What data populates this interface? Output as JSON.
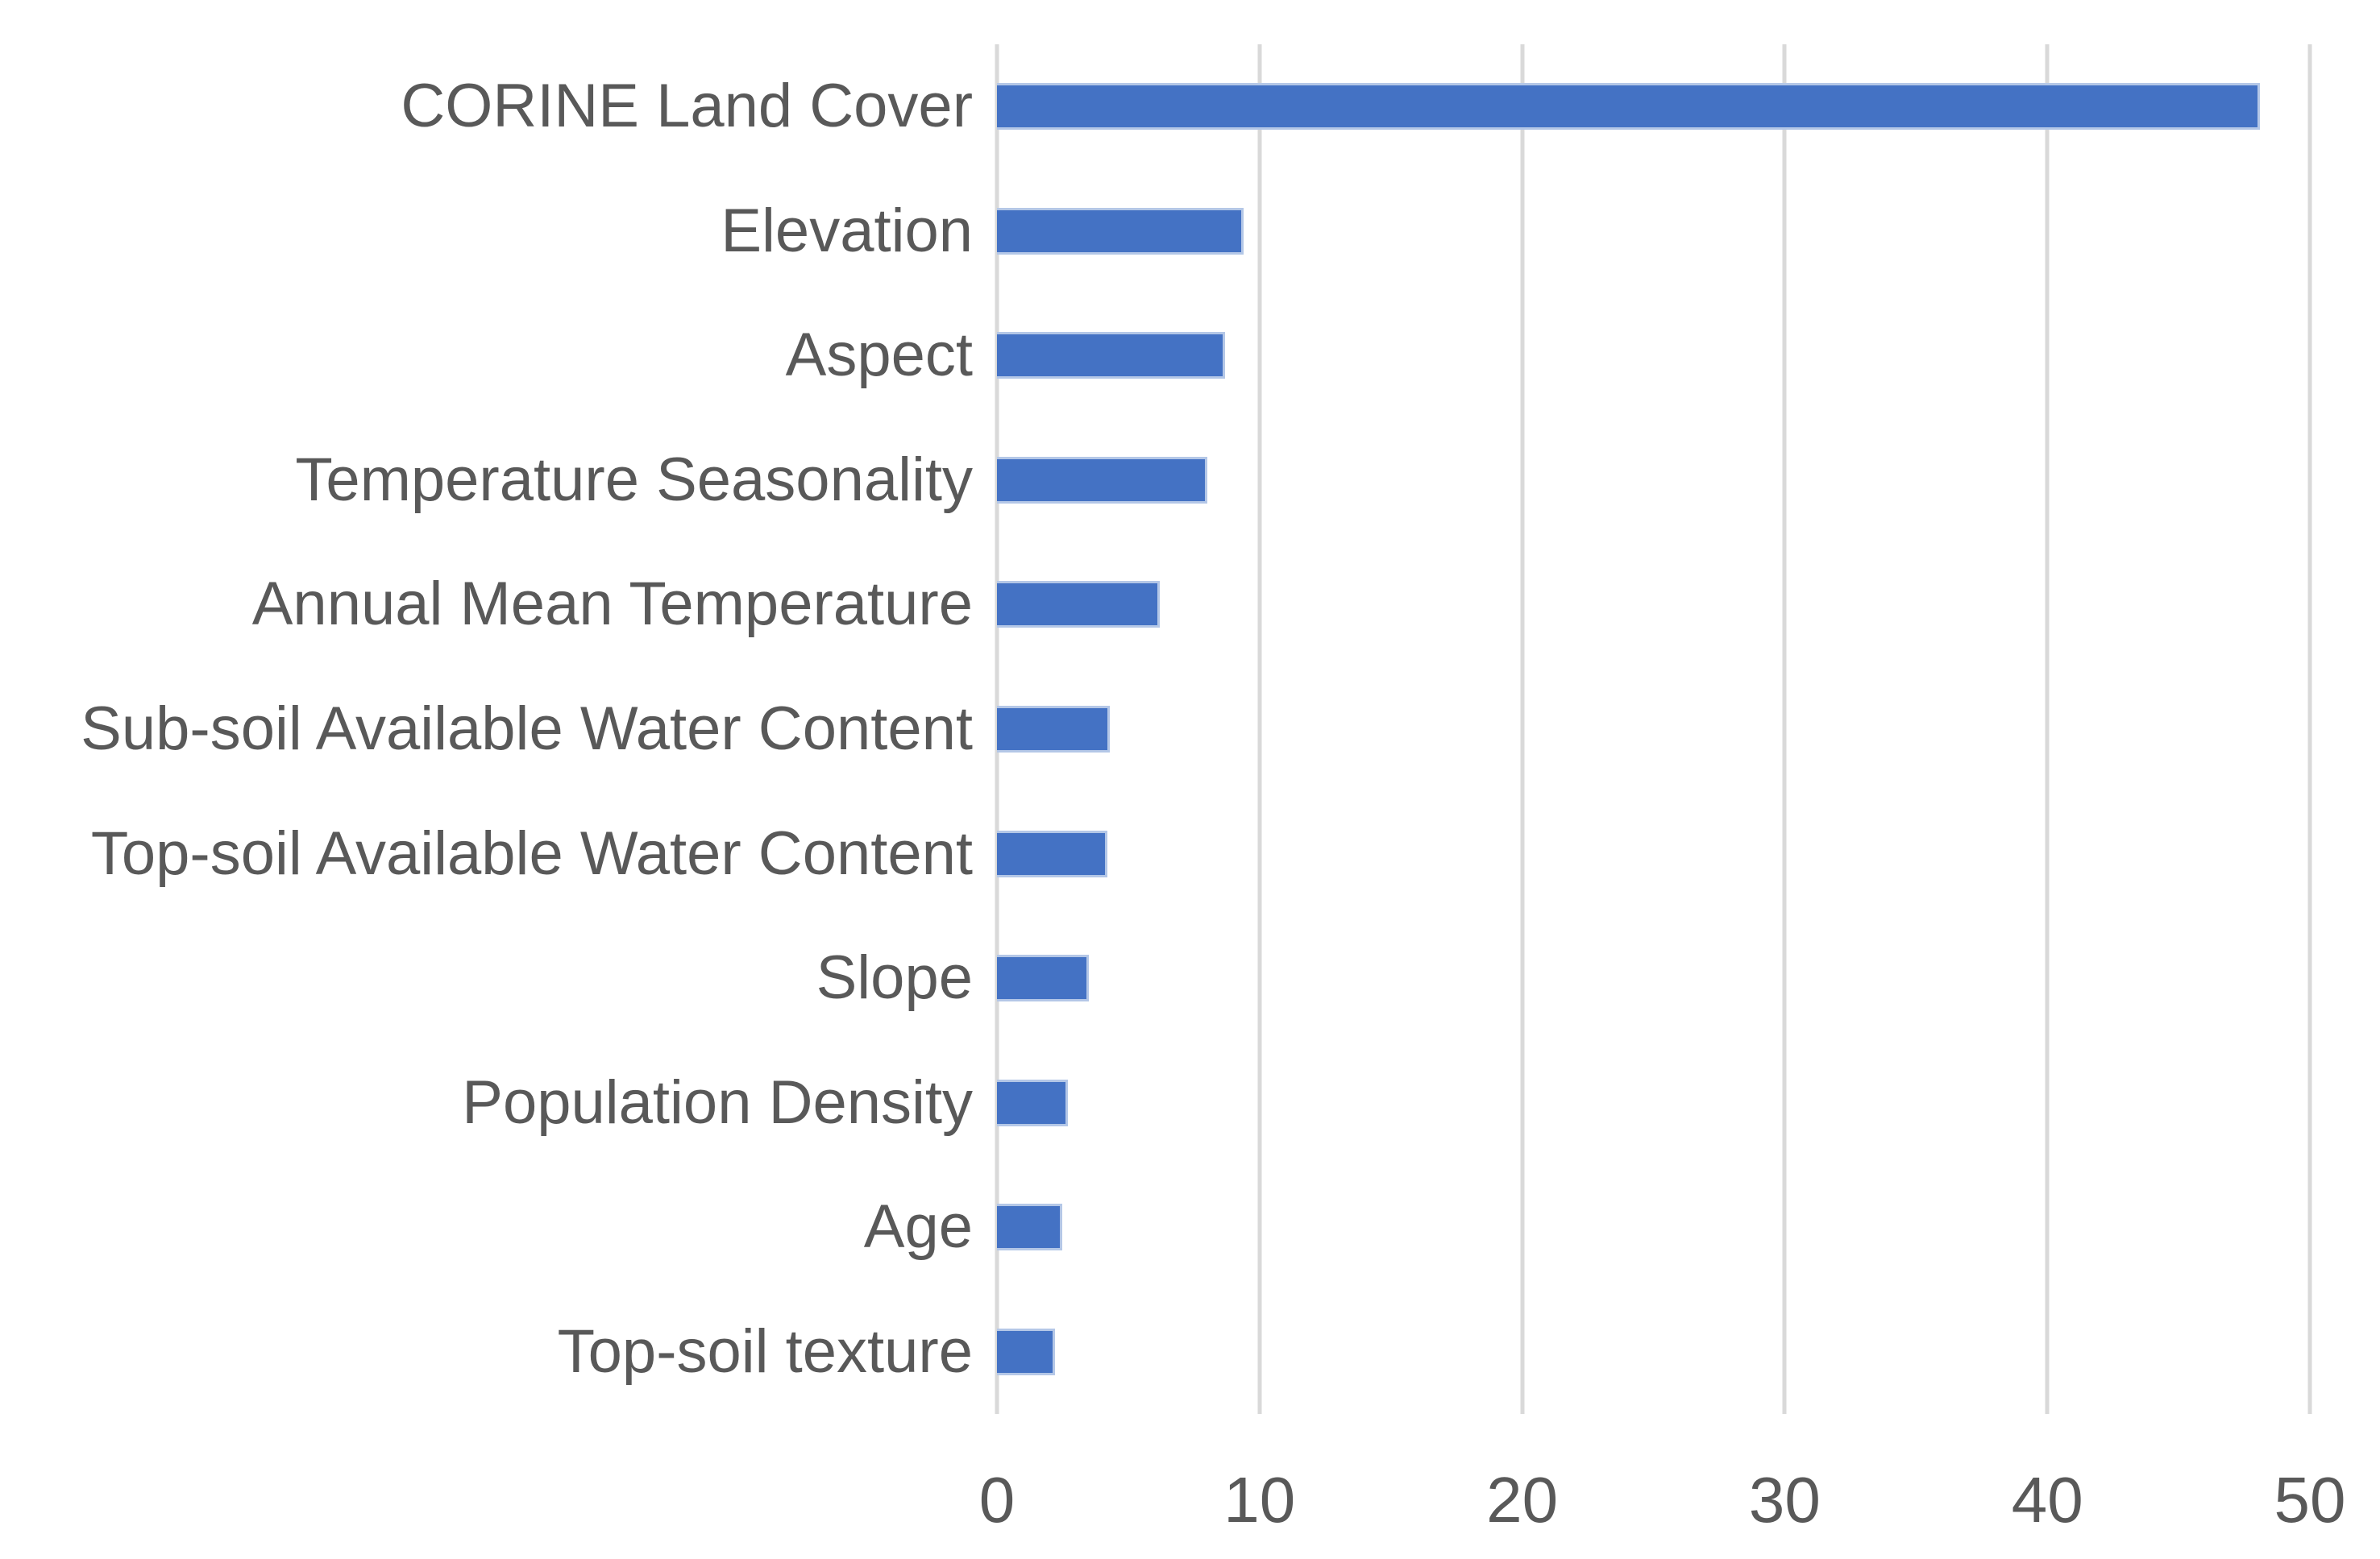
{
  "chart_data": {
    "type": "bar",
    "orientation": "horizontal",
    "title": "",
    "xlabel": "",
    "ylabel": "",
    "categories": [
      "CORINE Land Cover",
      "Elevation",
      "Aspect",
      "Temperature Seasonality",
      "Annual Mean Temperature",
      "Sub-soil Available Water Content",
      "Top-soil Available Water Content",
      "Slope",
      "Population Density",
      "Age",
      "Top-soil texture"
    ],
    "values": [
      48.1,
      9.4,
      8.7,
      8.0,
      6.2,
      4.3,
      4.2,
      3.5,
      2.7,
      2.5,
      2.2
    ],
    "xlim": [
      0,
      50
    ],
    "x_ticks": [
      "0",
      "10",
      "20",
      "30",
      "40",
      "50"
    ],
    "grid": true,
    "legend": false,
    "colors": {
      "bar_fill": "#4472C4",
      "bar_edge": "#B4C7E7",
      "gridline": "#D9D9D9",
      "text": "#595959",
      "background": "#FFFFFF"
    }
  }
}
